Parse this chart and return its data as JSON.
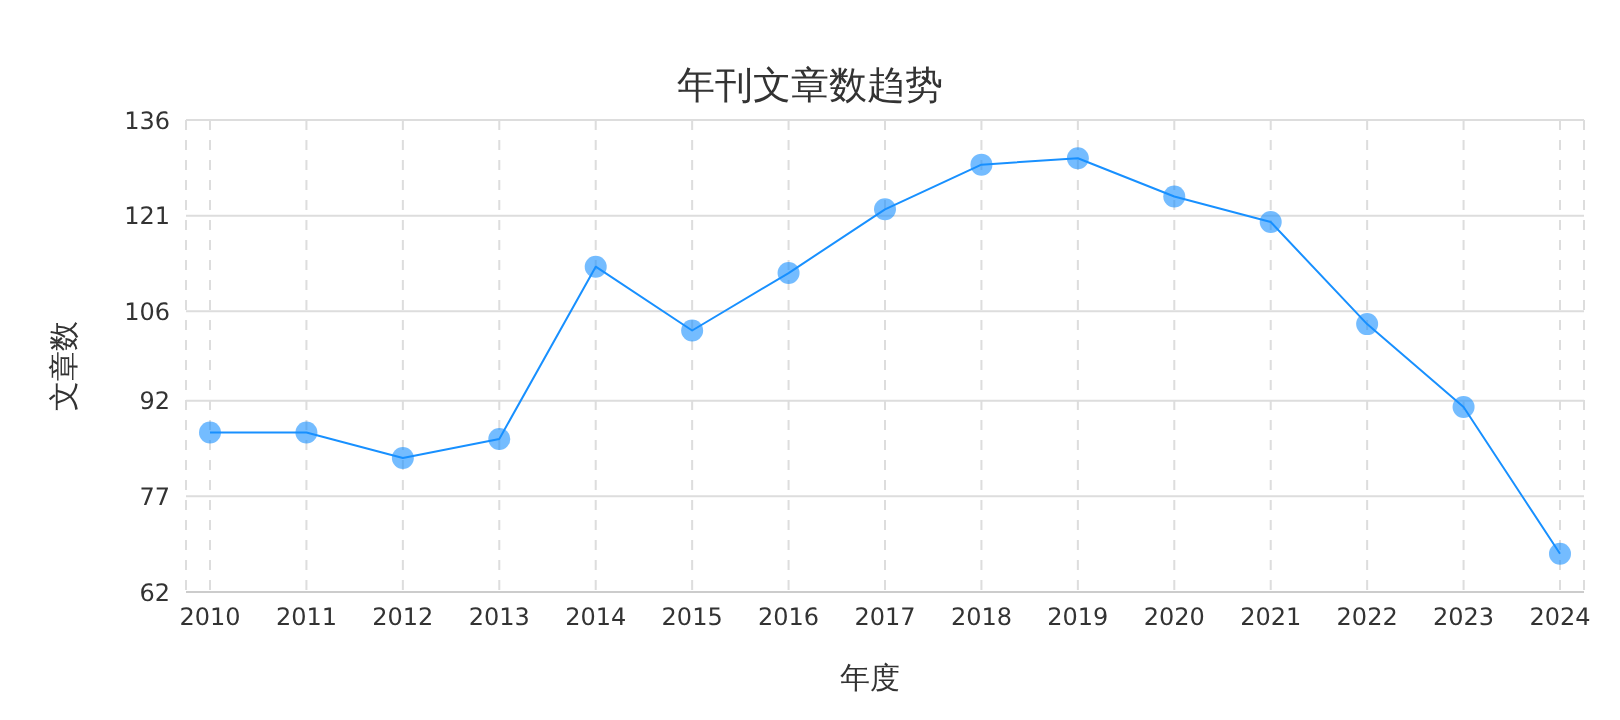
{
  "chart_data": {
    "type": "line",
    "title": "年刊文章数趋势",
    "xlabel": "年度",
    "ylabel": "文章数",
    "categories": [
      "2010",
      "2011",
      "2012",
      "2013",
      "2014",
      "2015",
      "2016",
      "2017",
      "2018",
      "2019",
      "2020",
      "2021",
      "2022",
      "2023",
      "2024"
    ],
    "series": [
      {
        "color": "#1890ff",
        "values": [
          87,
          87,
          83,
          86,
          113,
          103,
          112,
          122,
          129,
          130,
          124,
          120,
          104,
          91,
          68
        ]
      }
    ],
    "ylim": [
      62,
      136
    ],
    "yticks": [
      62,
      77,
      92,
      106,
      121,
      136
    ],
    "grid": true,
    "marker": "circle",
    "line_style": "solid",
    "legend": false
  }
}
